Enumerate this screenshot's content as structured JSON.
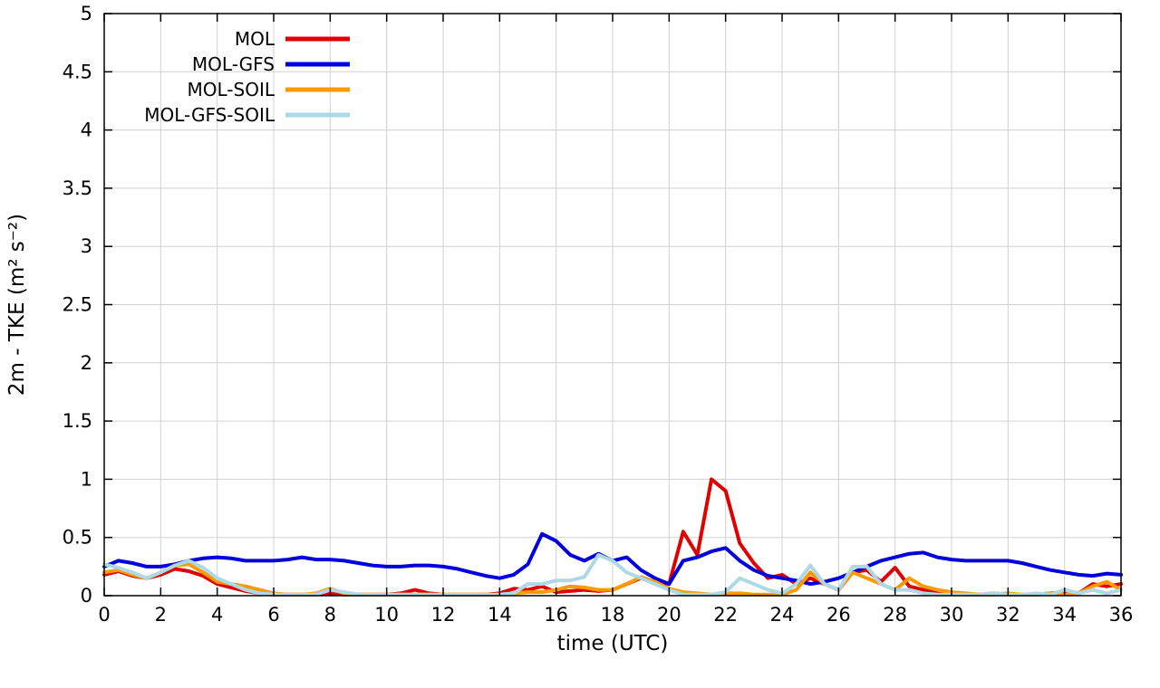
{
  "chart_data": {
    "type": "line",
    "title": "",
    "xlabel": "time (UTC)",
    "ylabel": "2m - TKE (m² s⁻²)",
    "xlim": [
      0,
      36
    ],
    "ylim": [
      0,
      5
    ],
    "xticks": [
      0,
      2,
      4,
      6,
      8,
      10,
      12,
      14,
      16,
      18,
      20,
      22,
      24,
      26,
      28,
      30,
      32,
      34,
      36
    ],
    "yticks": [
      0,
      0.5,
      1,
      1.5,
      2,
      2.5,
      3,
      3.5,
      4,
      4.5,
      5
    ],
    "grid": true,
    "legend_position": "top-left-inside",
    "x_start": 0,
    "x_step": 0.5,
    "colors": {
      "grid": "#d0d0d0",
      "axis": "#000000",
      "background": "#ffffff"
    },
    "series": [
      {
        "name": "MOL",
        "color": "#e00000",
        "values": [
          0.18,
          0.21,
          0.17,
          0.15,
          0.18,
          0.23,
          0.21,
          0.17,
          0.1,
          0.07,
          0.04,
          0.02,
          0.01,
          0.01,
          0.01,
          0.01,
          0.02,
          0.01,
          0.01,
          0.01,
          0.01,
          0.02,
          0.05,
          0.02,
          0.01,
          0.01,
          0.01,
          0.01,
          0.02,
          0.06,
          0.05,
          0.08,
          0.03,
          0.04,
          0.05,
          0.04,
          0.05,
          0.1,
          0.15,
          0.12,
          0.1,
          0.55,
          0.35,
          1.0,
          0.9,
          0.45,
          0.28,
          0.15,
          0.18,
          0.1,
          0.15,
          0.1,
          0.05,
          0.2,
          0.22,
          0.12,
          0.24,
          0.08,
          0.05,
          0.03,
          0.02,
          0.01,
          0.01,
          0.02,
          0.01,
          0.01,
          0.01,
          0.02,
          0.03,
          0.02,
          0.1,
          0.08,
          0.1
        ]
      },
      {
        "name": "MOL-GFS",
        "color": "#0000dd",
        "values": [
          0.25,
          0.3,
          0.28,
          0.25,
          0.25,
          0.27,
          0.3,
          0.32,
          0.33,
          0.32,
          0.3,
          0.3,
          0.3,
          0.31,
          0.33,
          0.31,
          0.31,
          0.3,
          0.28,
          0.26,
          0.25,
          0.25,
          0.26,
          0.26,
          0.25,
          0.23,
          0.2,
          0.17,
          0.15,
          0.18,
          0.27,
          0.53,
          0.47,
          0.35,
          0.3,
          0.36,
          0.3,
          0.33,
          0.22,
          0.15,
          0.1,
          0.3,
          0.33,
          0.38,
          0.41,
          0.3,
          0.22,
          0.17,
          0.15,
          0.13,
          0.1,
          0.12,
          0.15,
          0.2,
          0.25,
          0.3,
          0.33,
          0.36,
          0.37,
          0.33,
          0.31,
          0.3,
          0.3,
          0.3,
          0.3,
          0.28,
          0.25,
          0.22,
          0.2,
          0.18,
          0.17,
          0.19,
          0.18
        ]
      },
      {
        "name": "MOL-SOIL",
        "color": "#ff9900",
        "values": [
          0.2,
          0.22,
          0.18,
          0.15,
          0.2,
          0.26,
          0.27,
          0.2,
          0.12,
          0.1,
          0.08,
          0.05,
          0.02,
          0.01,
          0.01,
          0.02,
          0.06,
          0.02,
          0.01,
          0.01,
          0.01,
          0.01,
          0.01,
          0.01,
          0.01,
          0.01,
          0.01,
          0.01,
          0.01,
          0.02,
          0.03,
          0.03,
          0.05,
          0.08,
          0.07,
          0.05,
          0.05,
          0.1,
          0.16,
          0.12,
          0.06,
          0.03,
          0.02,
          0.01,
          0.02,
          0.02,
          0.01,
          0.01,
          0.01,
          0.05,
          0.2,
          0.1,
          0.05,
          0.2,
          0.15,
          0.1,
          0.05,
          0.15,
          0.08,
          0.05,
          0.03,
          0.02,
          0.01,
          0.01,
          0.02,
          0.01,
          0.01,
          0.02,
          0.01,
          0.02,
          0.08,
          0.12,
          0.05
        ]
      },
      {
        "name": "MOL-GFS-SOIL",
        "color": "#add8e6",
        "values": [
          0.27,
          0.24,
          0.2,
          0.15,
          0.2,
          0.26,
          0.3,
          0.24,
          0.15,
          0.1,
          0.05,
          0.02,
          0.01,
          0.01,
          0.01,
          0.01,
          0.05,
          0.03,
          0.01,
          0.01,
          0.01,
          0.01,
          0.01,
          0.01,
          0.01,
          0.01,
          0.01,
          0.01,
          0.01,
          0.02,
          0.1,
          0.1,
          0.13,
          0.13,
          0.16,
          0.35,
          0.3,
          0.2,
          0.15,
          0.1,
          0.05,
          0.01,
          0.01,
          0.01,
          0.03,
          0.15,
          0.1,
          0.05,
          0.02,
          0.1,
          0.26,
          0.1,
          0.05,
          0.25,
          0.25,
          0.1,
          0.05,
          0.05,
          0.02,
          0.01,
          0.01,
          0.01,
          0.01,
          0.02,
          0.01,
          0.01,
          0.02,
          0.01,
          0.05,
          0.02,
          0.05,
          0.02,
          0.05
        ]
      }
    ]
  }
}
